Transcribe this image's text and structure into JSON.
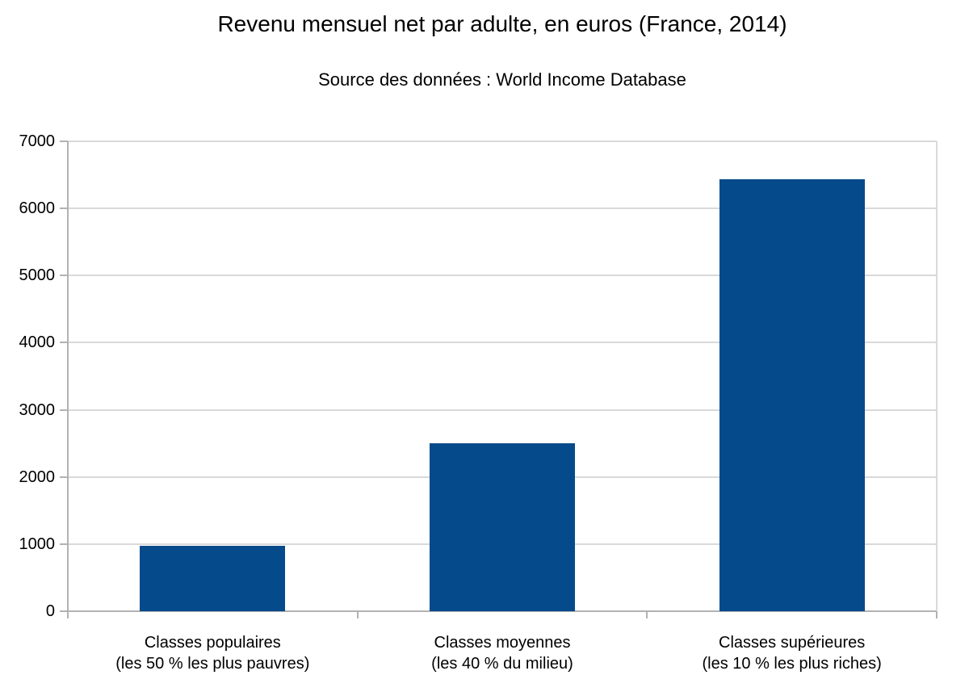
{
  "chart_data": {
    "type": "bar",
    "title": "Revenu mensuel net par adulte, en euros (France, 2014)",
    "subtitle": "Source des données : World Income Database",
    "categories": [
      {
        "line1": "Classes populaires",
        "line2": "(les 50 % les plus pauvres)"
      },
      {
        "line1": "Classes moyennes",
        "line2": "(les 40 % du milieu)"
      },
      {
        "line1": "Classes supérieures",
        "line2": "(les 10 % les plus riches)"
      }
    ],
    "values": [
      980,
      2500,
      6430
    ],
    "ylim": [
      0,
      7000
    ],
    "ytick_step": 1000,
    "ytick_labels": [
      "0",
      "1000",
      "2000",
      "3000",
      "4000",
      "5000",
      "6000",
      "7000"
    ],
    "xlabel": "",
    "ylabel": "",
    "grid": true,
    "legend_position": "none",
    "colors": {
      "bar": "#054a8a",
      "gridline": "#d9d9d9",
      "axis": "#b2b2b2",
      "text": "#000000",
      "background": "#ffffff"
    }
  }
}
